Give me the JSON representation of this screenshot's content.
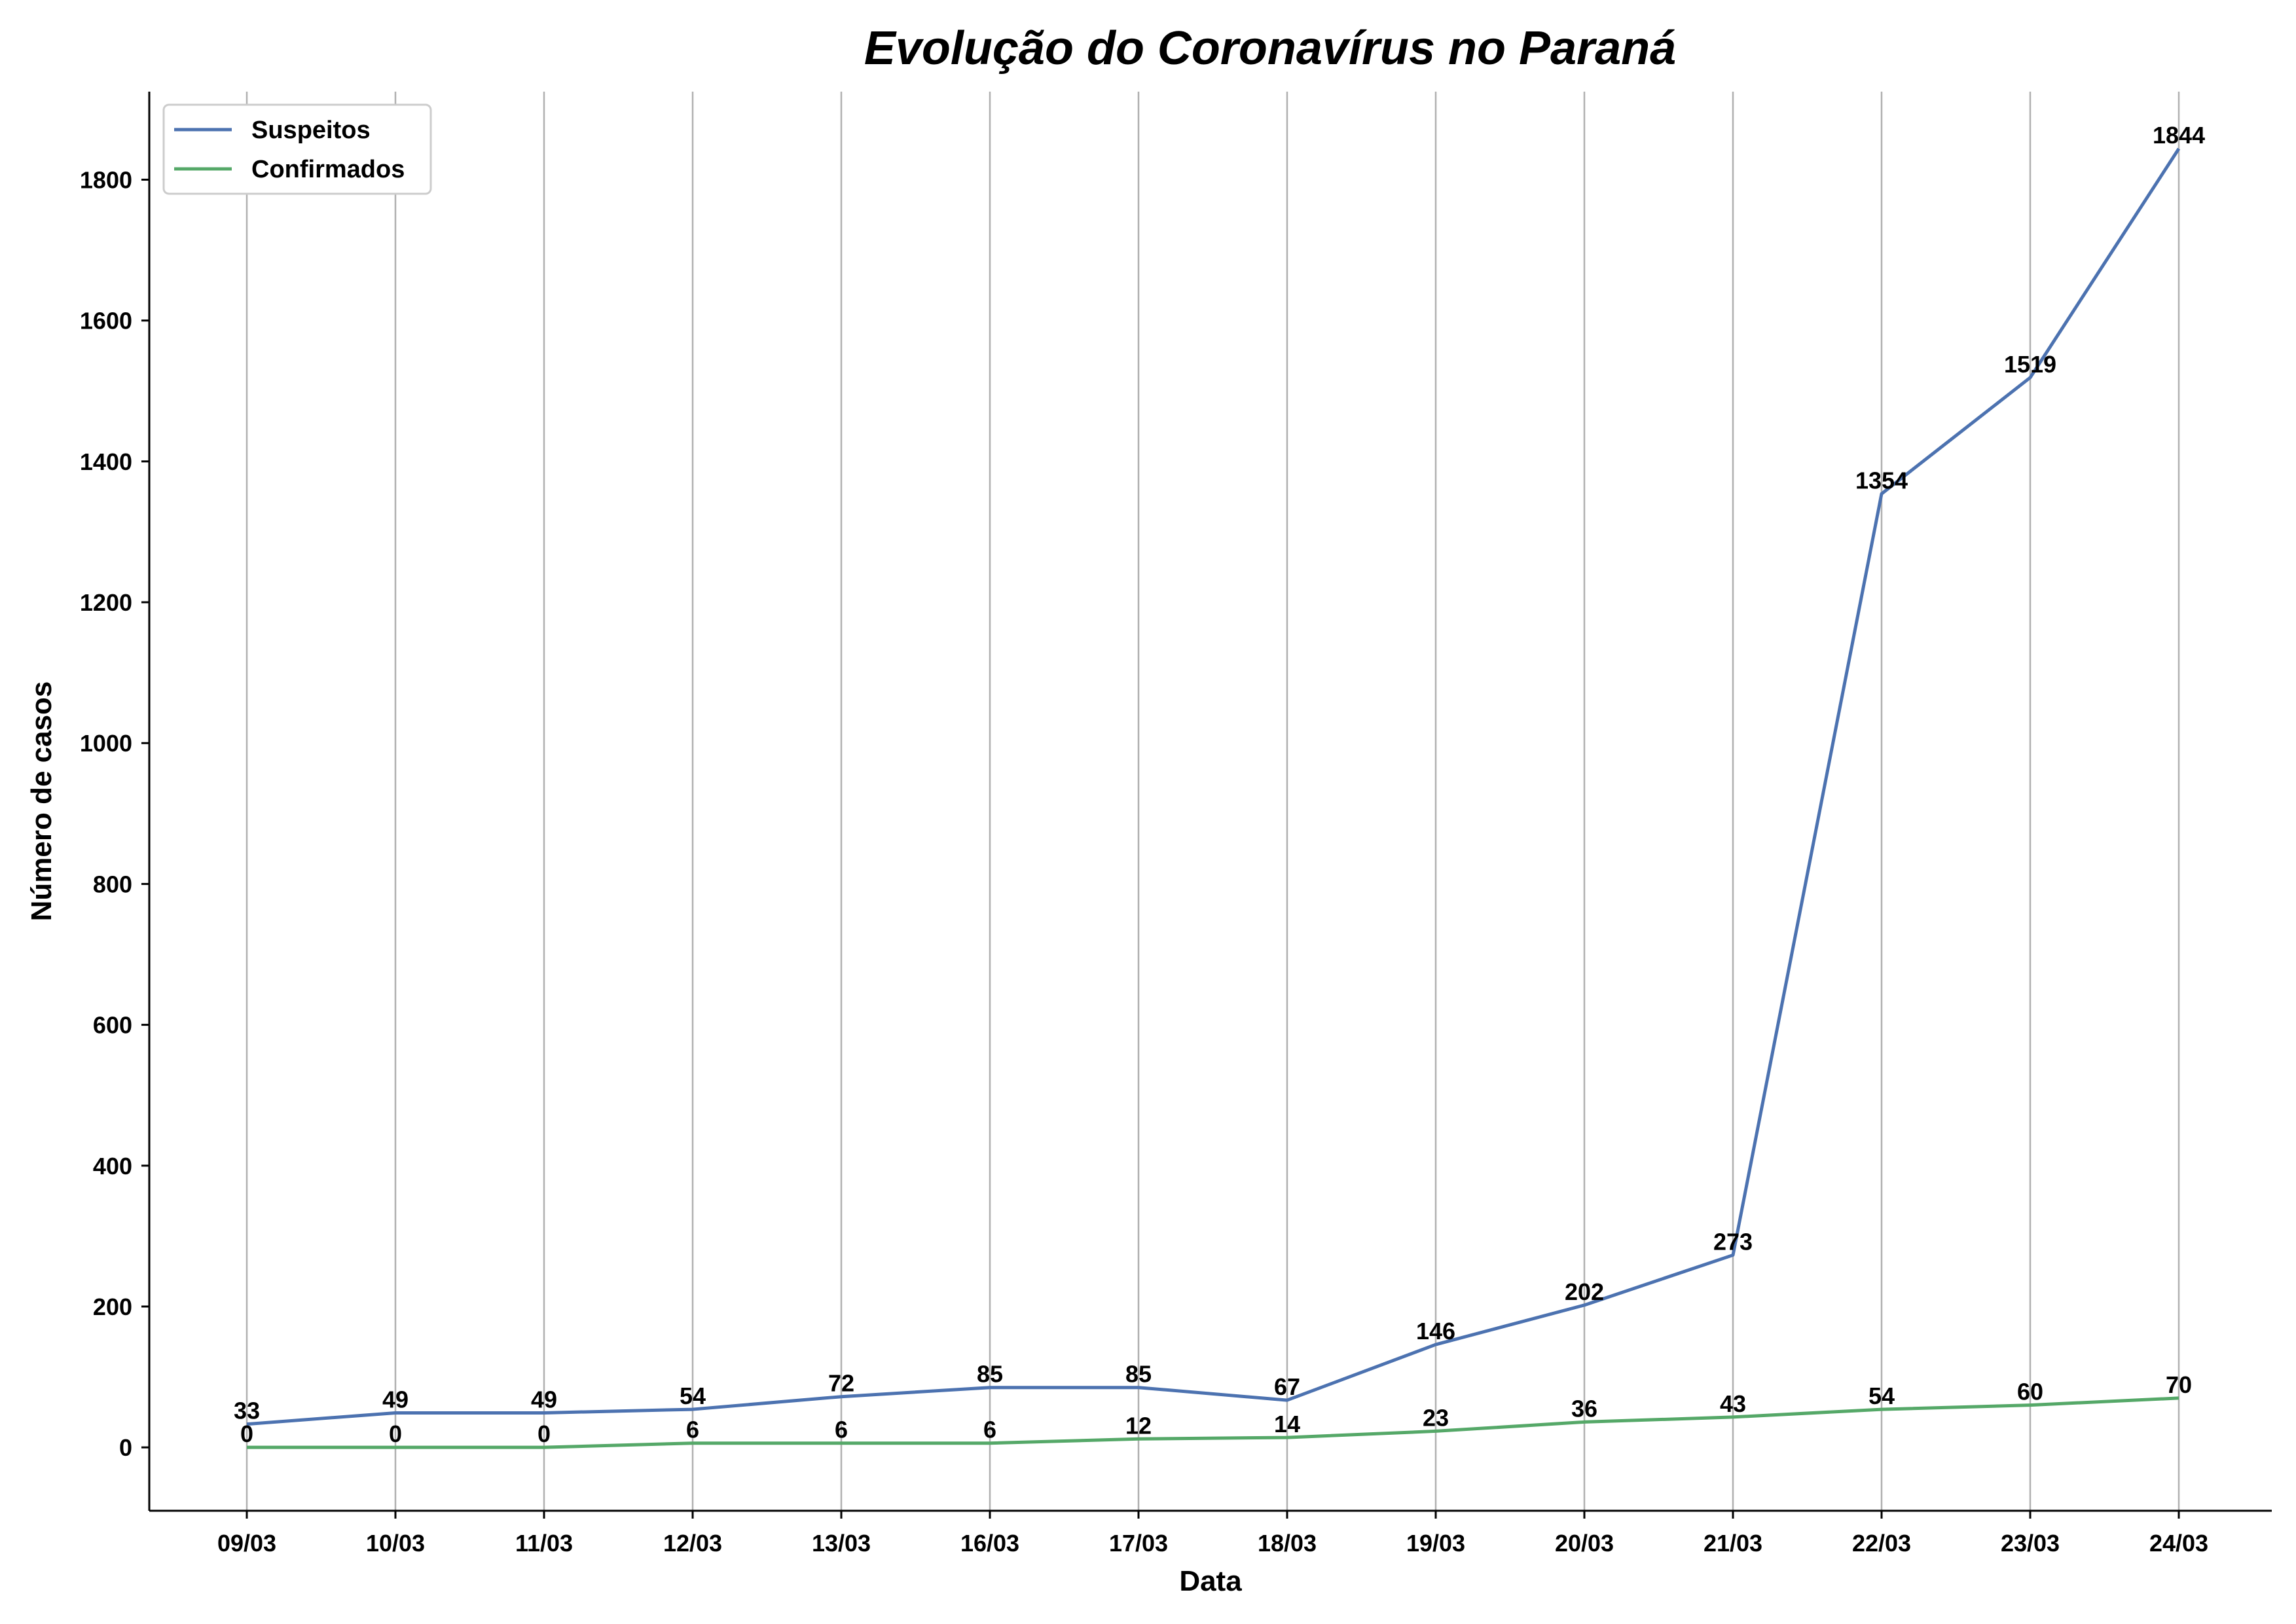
{
  "chart_data": {
    "type": "line",
    "title": "Evolução do Coronavírus no Paraná",
    "xlabel": "Data",
    "ylabel": "Número de casos",
    "categories": [
      "09/03",
      "10/03",
      "11/03",
      "12/03",
      "13/03",
      "16/03",
      "17/03",
      "18/03",
      "19/03",
      "20/03",
      "21/03",
      "22/03",
      "23/03",
      "24/03"
    ],
    "series": [
      {
        "name": "Suspeitos",
        "color": "#4c72b0",
        "values": [
          33,
          49,
          49,
          54,
          72,
          85,
          85,
          67,
          146,
          202,
          273,
          1354,
          1519,
          1844
        ]
      },
      {
        "name": "Confirmados",
        "color": "#55a868",
        "values": [
          0,
          0,
          0,
          6,
          6,
          6,
          12,
          14,
          23,
          36,
          43,
          54,
          60,
          70
        ]
      }
    ],
    "ylim": [
      -90,
      1925
    ],
    "yticks": [
      0,
      200,
      400,
      600,
      800,
      1000,
      1200,
      1400,
      1600,
      1800
    ],
    "grid": "vertical",
    "grid_color": "#b0b0b0",
    "legend": "top-left"
  }
}
